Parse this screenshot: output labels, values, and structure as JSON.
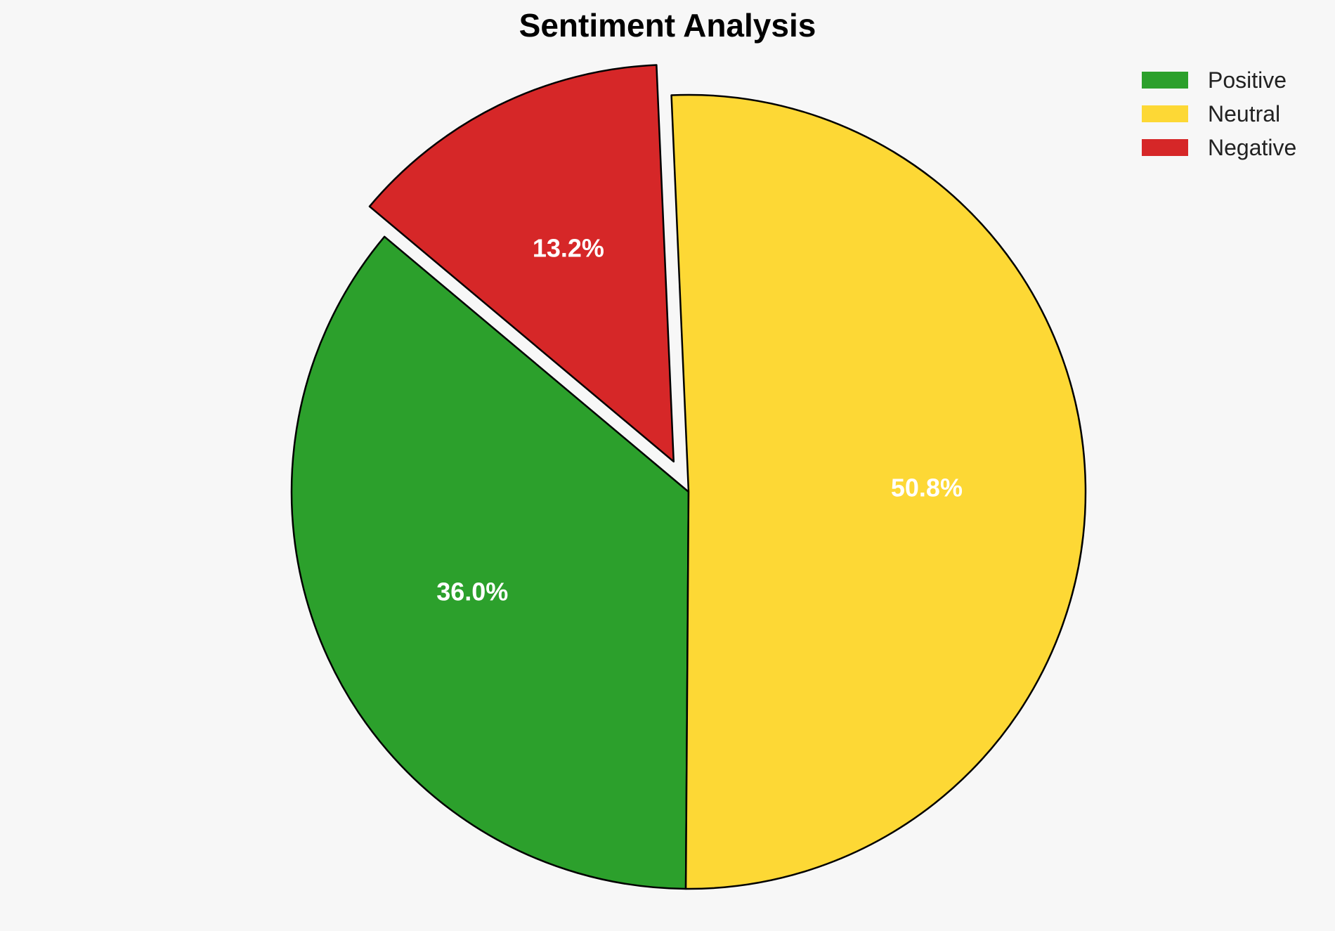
{
  "chart_data": {
    "type": "pie",
    "title": "Sentiment Analysis",
    "labels": [
      "Positive",
      "Neutral",
      "Negative"
    ],
    "values": [
      36.0,
      50.8,
      13.2
    ],
    "value_labels": [
      "36.0%",
      "50.8%",
      "13.2%"
    ],
    "colors": [
      "#2ca02c",
      "#fdd835",
      "#d62728"
    ],
    "exploded": [
      false,
      false,
      true
    ],
    "start_angle_deg": 140,
    "direction": "counterclockwise",
    "legend": {
      "placement": "top-right",
      "entries": [
        "Positive",
        "Neutral",
        "Negative"
      ]
    }
  }
}
